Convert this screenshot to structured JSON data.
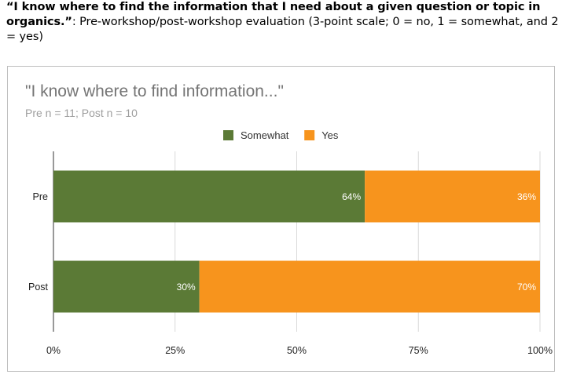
{
  "caption": {
    "bold": "“I know where to find the information that I need about a given question or topic in organics.”",
    "rest": ": Pre-workshop/post-workshop evaluation (3-point scale; 0 = no, 1 = somewhat, and 2 = yes)"
  },
  "chart_data": {
    "type": "bar",
    "orientation": "horizontal",
    "stacked": true,
    "title": "\"I know where to find information...\"",
    "subtitle": "Pre n = 11; Post n = 10",
    "categories": [
      "Pre",
      "Post"
    ],
    "series": [
      {
        "name": "Somewhat",
        "color": "#5b7a36",
        "values": [
          64,
          30
        ],
        "labels": [
          "64%",
          "30%"
        ]
      },
      {
        "name": "Yes",
        "color": "#f7941d",
        "values": [
          36,
          70
        ],
        "labels": [
          "36%",
          "70%"
        ]
      }
    ],
    "xlim": [
      0,
      100
    ],
    "xticks": [
      "0%",
      "25%",
      "50%",
      "75%",
      "100%"
    ],
    "grid": true,
    "legend": "top-center"
  }
}
